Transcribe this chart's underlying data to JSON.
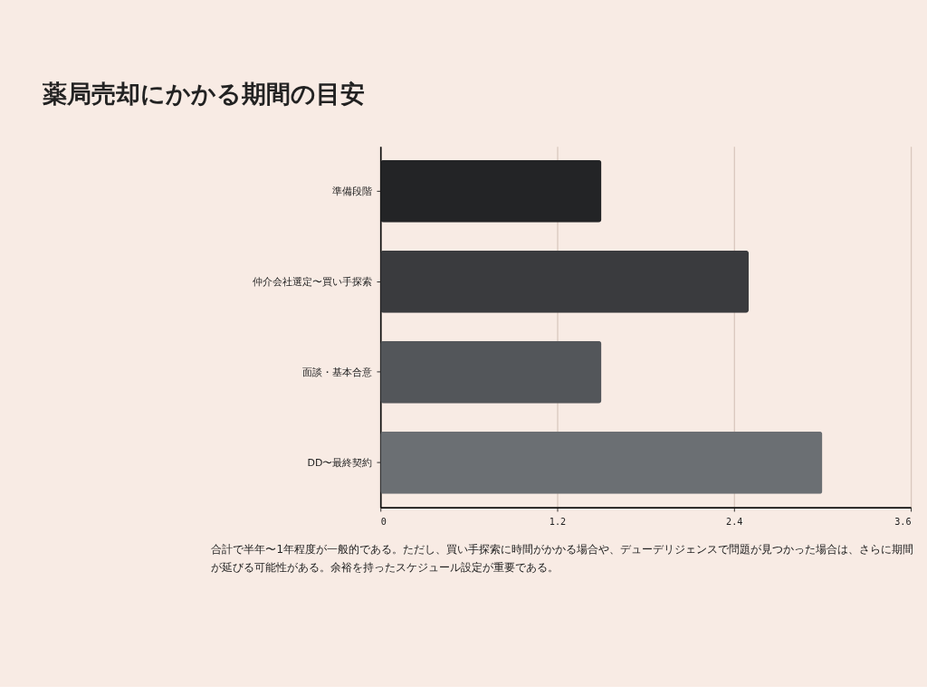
{
  "chart_data": {
    "type": "bar",
    "orientation": "horizontal",
    "title": "薬局売却にかかる期間の目安",
    "categories": [
      "準備段階",
      "仲介会社選定〜買い手探索",
      "面談・基本合意",
      "DD〜最終契約"
    ],
    "values": [
      1.5,
      2.5,
      1.5,
      3.0
    ],
    "colors": [
      "#232426",
      "#3a3b3e",
      "#53565a",
      "#6b6f73"
    ],
    "xlim": [
      0,
      3.6
    ],
    "xticks": [
      0,
      1.2,
      2.4,
      3.6
    ],
    "grid": "x",
    "annotations": [
      "合計で半年〜1年程度が一般的である。ただし、買い手探索に時間がかかる場合や、デューデリジェンスで問題が見つかった場合は、さらに期間が延びる可能性がある。余裕を持ったスケジュール設定が重要である。"
    ]
  }
}
